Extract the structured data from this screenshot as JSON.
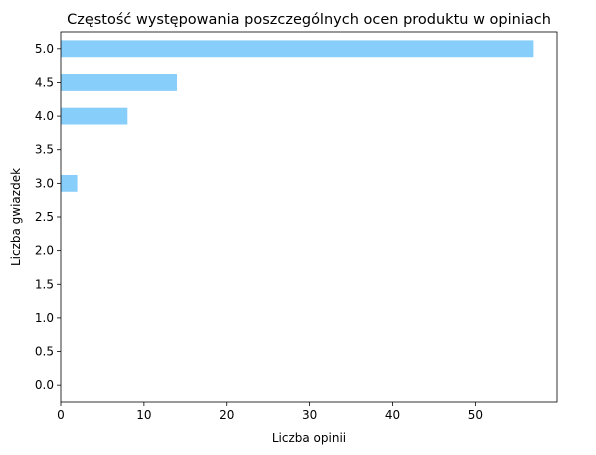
{
  "chart_data": {
    "type": "bar",
    "orientation": "horizontal",
    "title": "Częstość występowania poszczególnych ocen produktu w opiniach",
    "xlabel": "Liczba opinii",
    "ylabel": "Liczba gwiazdek",
    "categories": [
      "0.0",
      "0.5",
      "1.0",
      "1.5",
      "2.0",
      "2.5",
      "3.0",
      "3.5",
      "4.0",
      "4.5",
      "5.0"
    ],
    "values": [
      0,
      0,
      0,
      0,
      0,
      0,
      2,
      0,
      8,
      14,
      57
    ],
    "xlim": [
      0,
      59.85
    ],
    "xticks": [
      0,
      10,
      20,
      30,
      40,
      50
    ],
    "grid": false,
    "bar_color": "#87CEFA"
  }
}
